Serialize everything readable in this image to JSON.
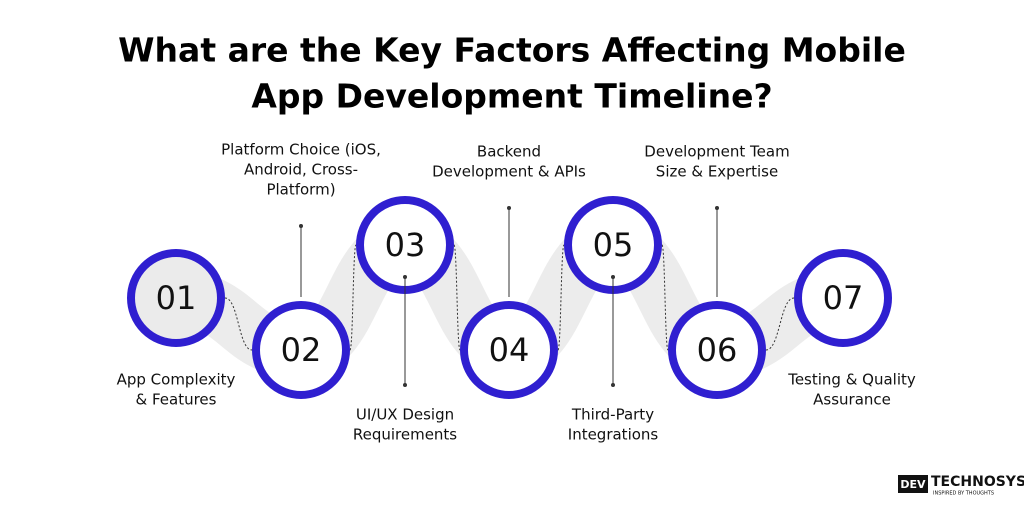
{
  "title": [
    "What are the Key Factors Affecting Mobile",
    "App Development Timeline?"
  ],
  "steps": [
    {
      "number": "01",
      "label": [
        "App Complexity",
        "& Features"
      ]
    },
    {
      "number": "02",
      "label": [
        "Platform Choice (iOS,",
        "Android, Cross-",
        "Platform)"
      ]
    },
    {
      "number": "03",
      "label": [
        "UI/UX Design",
        "Requirements"
      ]
    },
    {
      "number": "04",
      "label": [
        "Backend",
        "Development & APIs"
      ]
    },
    {
      "number": "05",
      "label": [
        "Third-Party",
        "Integrations"
      ]
    },
    {
      "number": "06",
      "label": [
        "Development Team",
        "Size & Expertise"
      ]
    },
    {
      "number": "07",
      "label": [
        "Testing & Quality",
        "Assurance"
      ]
    }
  ],
  "logo": {
    "mark": "DEV",
    "name": "TECHNOSYS",
    "tagline": "INSPIRED BY THOUGHTS"
  }
}
